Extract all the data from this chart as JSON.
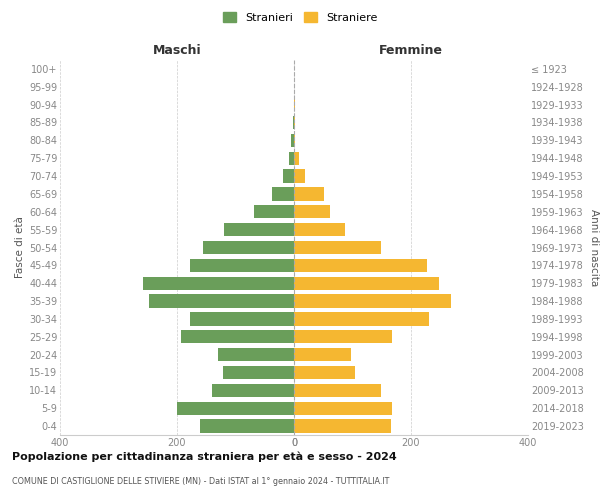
{
  "age_groups": [
    "0-4",
    "5-9",
    "10-14",
    "15-19",
    "20-24",
    "25-29",
    "30-34",
    "35-39",
    "40-44",
    "45-49",
    "50-54",
    "55-59",
    "60-64",
    "65-69",
    "70-74",
    "75-79",
    "80-84",
    "85-89",
    "90-94",
    "95-99",
    "100+"
  ],
  "birth_years": [
    "2019-2023",
    "2014-2018",
    "2009-2013",
    "2004-2008",
    "1999-2003",
    "1994-1998",
    "1989-1993",
    "1984-1988",
    "1979-1983",
    "1974-1978",
    "1969-1973",
    "1964-1968",
    "1959-1963",
    "1954-1958",
    "1949-1953",
    "1944-1948",
    "1939-1943",
    "1934-1938",
    "1929-1933",
    "1924-1928",
    "≤ 1923"
  ],
  "maschi": [
    160,
    200,
    140,
    122,
    130,
    193,
    178,
    248,
    258,
    178,
    155,
    120,
    68,
    38,
    18,
    8,
    5,
    2,
    0,
    0,
    0
  ],
  "femmine": [
    165,
    168,
    148,
    105,
    98,
    168,
    230,
    268,
    248,
    228,
    148,
    88,
    62,
    52,
    18,
    8,
    2,
    2,
    2,
    0,
    0
  ],
  "male_color": "#6a9e5a",
  "female_color": "#f5b731",
  "male_label": "Stranieri",
  "female_label": "Straniere",
  "xlim": 400,
  "title": "Popolazione per cittadinanza straniera per età e sesso - 2024",
  "subtitle": "COMUNE DI CASTIGLIONE DELLE STIVIERE (MN) - Dati ISTAT al 1° gennaio 2024 - TUTTITALIA.IT",
  "ylabel_left": "Fasce di età",
  "ylabel_right": "Anni di nascita",
  "header_maschi": "Maschi",
  "header_femmine": "Femmine",
  "bg_color": "#ffffff",
  "grid_color": "#cccccc",
  "axis_label_color": "#888888",
  "bar_height": 0.75
}
